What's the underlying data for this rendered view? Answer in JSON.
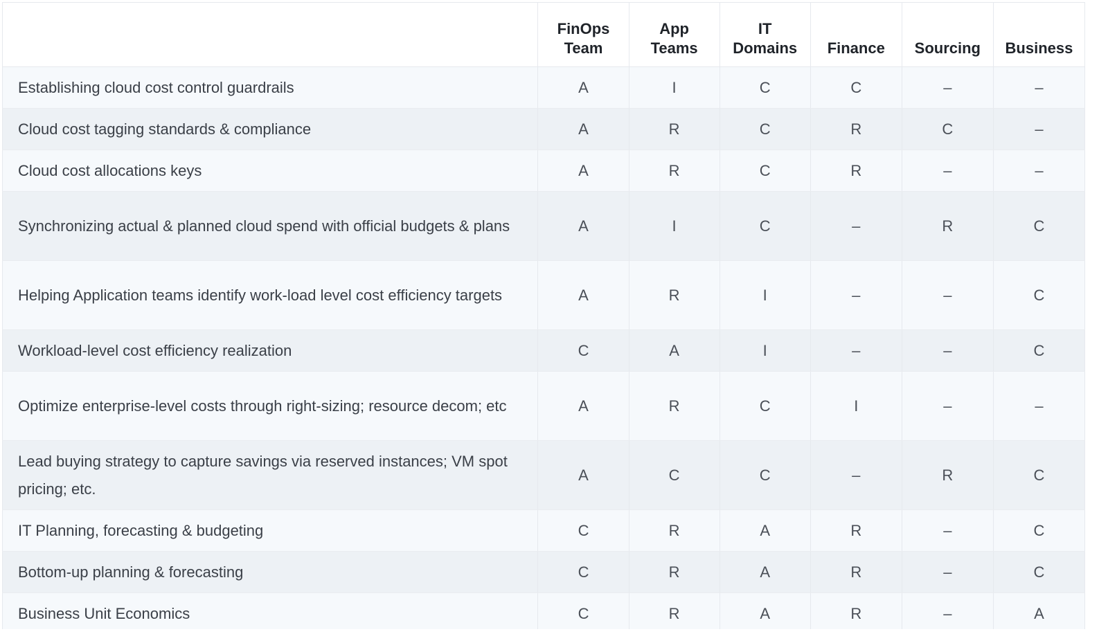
{
  "headers": {
    "task": "",
    "finops": [
      "FinOps",
      "Team"
    ],
    "app": [
      "App",
      "Teams"
    ],
    "it": [
      "IT",
      "Domains"
    ],
    "finance": "Finance",
    "sourcing": "Sourcing",
    "business": "Business"
  },
  "rows": [
    {
      "task": "Establishing cloud cost control guardrails",
      "finops": "A",
      "app": "I",
      "it": "C",
      "finance": "C",
      "sourcing": "–",
      "business": "–"
    },
    {
      "task": "Cloud cost tagging standards & compliance",
      "finops": "A",
      "app": "R",
      "it": "C",
      "finance": "R",
      "sourcing": "C",
      "business": "–"
    },
    {
      "task": "Cloud cost allocations keys",
      "finops": "A",
      "app": "R",
      "it": "C",
      "finance": "R",
      "sourcing": "–",
      "business": "–"
    },
    {
      "task": "Synchronizing actual & planned cloud spend with official budgets & plans",
      "finops": "A",
      "app": "I",
      "it": "C",
      "finance": "–",
      "sourcing": "R",
      "business": "C"
    },
    {
      "task": "Helping Application teams identify work-load level cost efficiency targets",
      "finops": "A",
      "app": "R",
      "it": "I",
      "finance": "–",
      "sourcing": "–",
      "business": "C"
    },
    {
      "task": "Workload-level cost efficiency realization",
      "finops": "C",
      "app": "A",
      "it": "I",
      "finance": "–",
      "sourcing": "–",
      "business": "C"
    },
    {
      "task": "Optimize enterprise-level costs through right-sizing; resource decom; etc",
      "finops": "A",
      "app": "R",
      "it": "C",
      "finance": "I",
      "sourcing": "–",
      "business": "–"
    },
    {
      "task": "Lead buying strategy to capture savings via reserved instances; VM spot pricing; etc.",
      "finops": "A",
      "app": "C",
      "it": "C",
      "finance": "–",
      "sourcing": "R",
      "business": "C"
    },
    {
      "task": "IT Planning, forecasting & budgeting",
      "finops": "C",
      "app": "R",
      "it": "A",
      "finance": "R",
      "sourcing": "–",
      "business": "C"
    },
    {
      "task": "Bottom-up planning & forecasting",
      "finops": "C",
      "app": "R",
      "it": "A",
      "finance": "R",
      "sourcing": "–",
      "business": "C"
    },
    {
      "task": "Business Unit Economics",
      "finops": "C",
      "app": "R",
      "it": "A",
      "finance": "R",
      "sourcing": "–",
      "business": "A"
    }
  ]
}
